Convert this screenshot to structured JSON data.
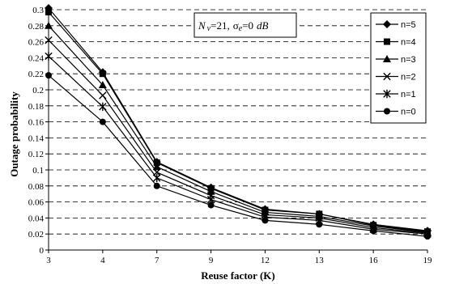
{
  "chart_data": {
    "type": "line",
    "xlabel": "Reuse factor (K)",
    "ylabel": "Outage probability",
    "categories": [
      "3",
      "4",
      "7",
      "9",
      "12",
      "13",
      "16",
      "19"
    ],
    "ylim": [
      0,
      0.3
    ],
    "yticks": [
      0,
      0.02,
      0.04,
      0.06,
      0.08,
      0.1,
      0.12,
      0.14,
      0.16,
      0.18,
      0.2,
      0.22,
      0.24,
      0.26,
      0.28,
      0.3
    ],
    "ytick_labels": [
      "0",
      "0.02",
      "0.04",
      "0.06",
      "0.08",
      "0.1",
      "0.12",
      "0.14",
      "0.16",
      "0.18",
      "0.2",
      "0.22",
      "0.24",
      "0.26",
      "0.28",
      "0.3"
    ],
    "grid": true,
    "legend_position": "top-right",
    "annotation": {
      "nv_symbol": "N",
      "nv_sub": "v",
      "nv_value": "=21,",
      "sigma_symbol": "σ",
      "sigma_sub": "e",
      "sigma_value": "=0",
      "unit": "dB"
    },
    "series": [
      {
        "name": "n=5",
        "marker": "diamond",
        "values": [
          0.302,
          0.222,
          0.11,
          0.078,
          0.051,
          0.045,
          0.032,
          0.024
        ]
      },
      {
        "name": "n=4",
        "marker": "square",
        "values": [
          0.297,
          0.22,
          0.109,
          0.077,
          0.05,
          0.045,
          0.031,
          0.023
        ]
      },
      {
        "name": "n=3",
        "marker": "triangle",
        "values": [
          0.28,
          0.206,
          0.104,
          0.073,
          0.047,
          0.042,
          0.03,
          0.022
        ]
      },
      {
        "name": "n=2",
        "marker": "x",
        "values": [
          0.262,
          0.193,
          0.097,
          0.068,
          0.044,
          0.04,
          0.028,
          0.021
        ]
      },
      {
        "name": "n=1",
        "marker": "star",
        "values": [
          0.242,
          0.179,
          0.09,
          0.063,
          0.041,
          0.037,
          0.026,
          0.02
        ]
      },
      {
        "name": "n=0",
        "marker": "circle",
        "values": [
          0.218,
          0.16,
          0.08,
          0.056,
          0.037,
          0.032,
          0.024,
          0.017
        ]
      }
    ]
  }
}
